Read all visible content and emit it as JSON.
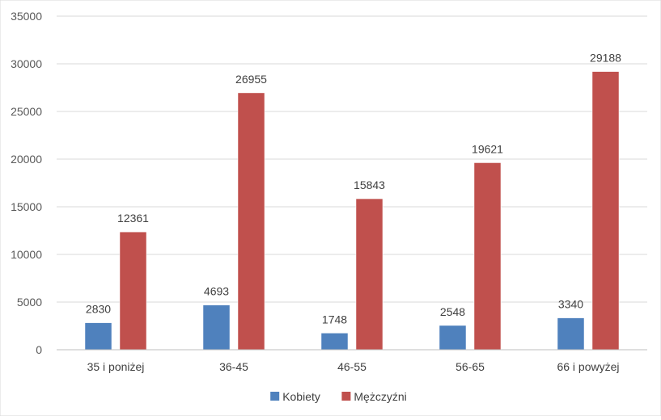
{
  "chart_data": {
    "type": "bar",
    "categories": [
      "35 i poniżej",
      "36-45",
      "46-55",
      "56-65",
      "66 i powyżej"
    ],
    "series": [
      {
        "name": "Kobiety",
        "values": [
          2830,
          4693,
          1748,
          2548,
          3340
        ],
        "color": "#4F81BD"
      },
      {
        "name": "Mężczyźni",
        "values": [
          12361,
          26955,
          15843,
          19621,
          29188
        ],
        "color": "#C0504D"
      }
    ],
    "ylim": [
      0,
      35000
    ],
    "yticks": [
      0,
      5000,
      10000,
      15000,
      20000,
      25000,
      30000,
      35000
    ],
    "grid": true,
    "legend_position": "bottom",
    "title": "",
    "xlabel": "",
    "ylabel": ""
  }
}
